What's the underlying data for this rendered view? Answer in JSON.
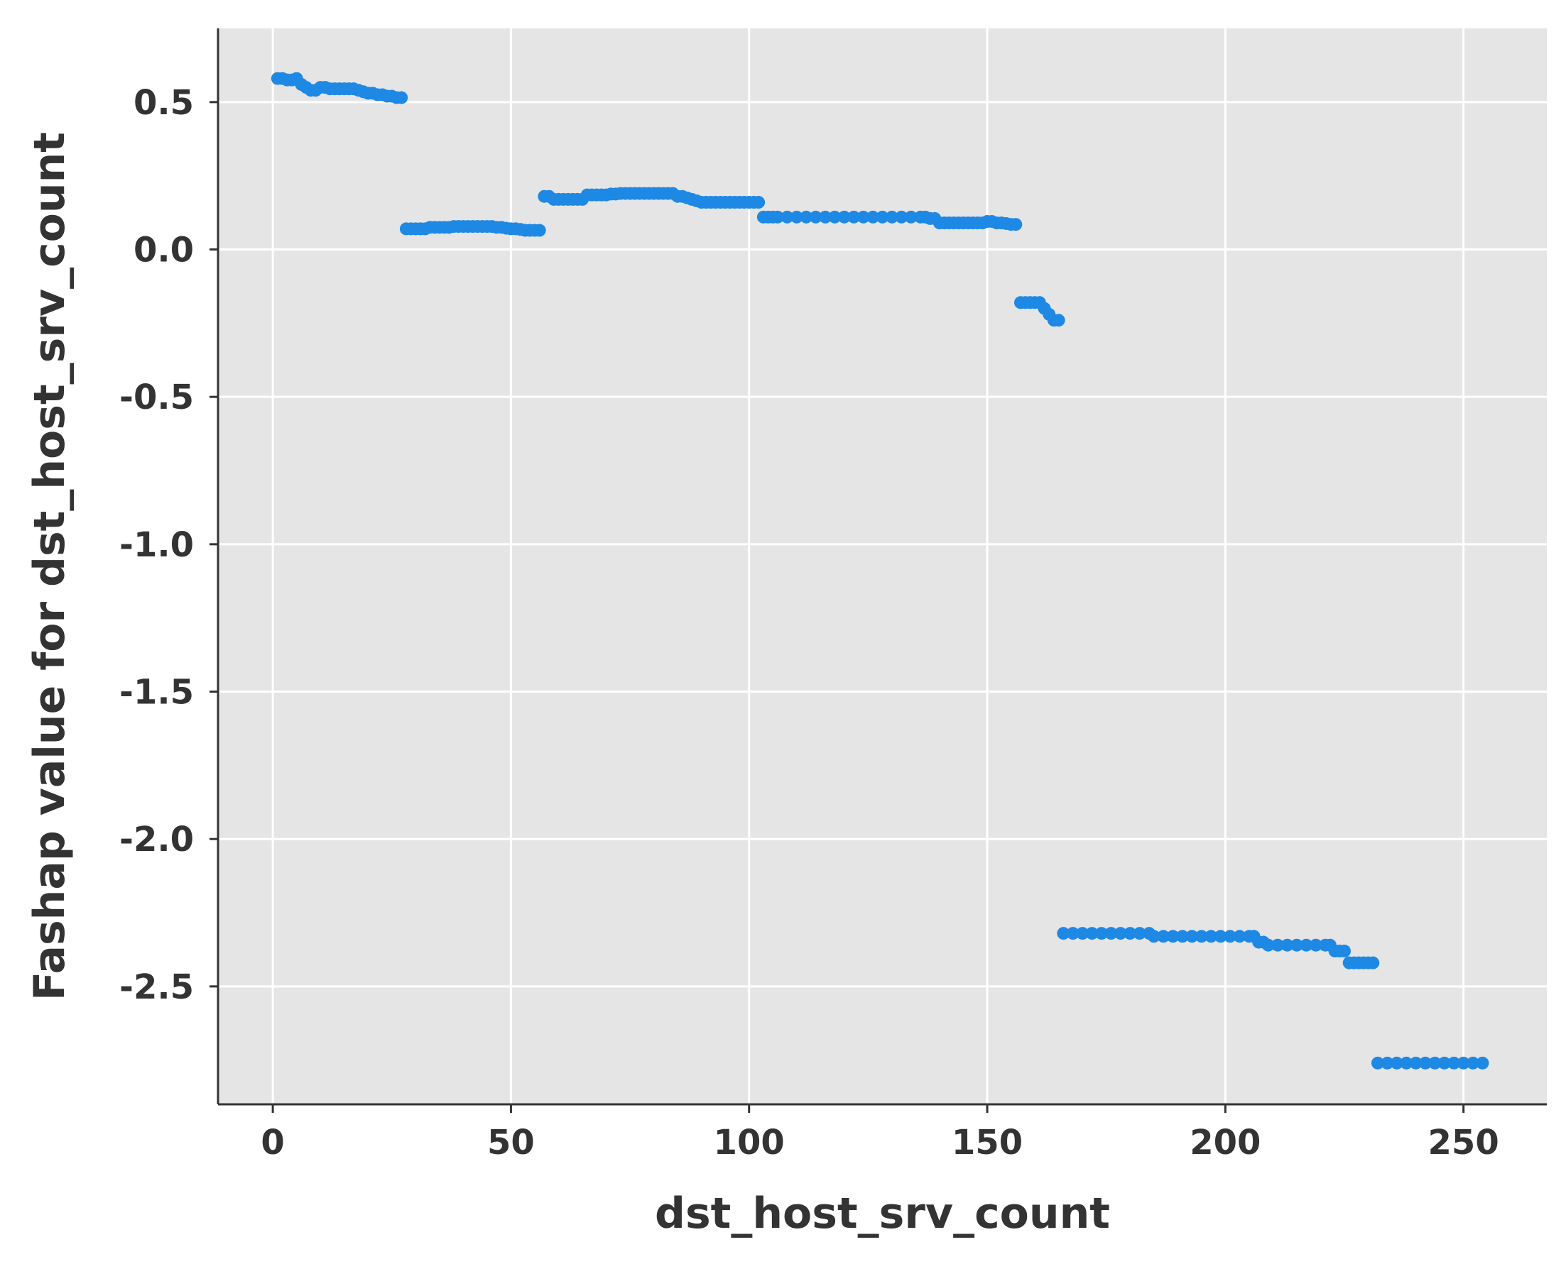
{
  "chart_data": {
    "type": "scatter",
    "title": "",
    "xlabel": "dst_host_srv_count",
    "ylabel": "Fashap value for dst_host_srv_count",
    "xlim": [
      -11.5,
      267.5
    ],
    "ylim": [
      -2.9,
      0.75
    ],
    "xticks": [
      0,
      50,
      100,
      150,
      200,
      250
    ],
    "xtick_labels": [
      "0",
      "50",
      "100",
      "150",
      "200",
      "250"
    ],
    "yticks": [
      0.5,
      0.0,
      -0.5,
      -1.0,
      -1.5,
      -2.0,
      -2.5
    ],
    "ytick_labels": [
      "0.5",
      "0.0",
      "-0.5",
      "-1.0",
      "-1.5",
      "-2.0",
      "-2.5"
    ],
    "grid": true,
    "marker_color": "#1e88e5",
    "background_color": "#e5e5e5",
    "points": [
      [
        1,
        0.58
      ],
      [
        2,
        0.58
      ],
      [
        3,
        0.575
      ],
      [
        4,
        0.575
      ],
      [
        5,
        0.58
      ],
      [
        6,
        0.56
      ],
      [
        7,
        0.55
      ],
      [
        8,
        0.54
      ],
      [
        9,
        0.54
      ],
      [
        10,
        0.55
      ],
      [
        11,
        0.55
      ],
      [
        12,
        0.545
      ],
      [
        13,
        0.545
      ],
      [
        14,
        0.545
      ],
      [
        15,
        0.545
      ],
      [
        16,
        0.545
      ],
      [
        17,
        0.545
      ],
      [
        18,
        0.54
      ],
      [
        19,
        0.535
      ],
      [
        20,
        0.53
      ],
      [
        21,
        0.53
      ],
      [
        22,
        0.525
      ],
      [
        23,
        0.525
      ],
      [
        24,
        0.52
      ],
      [
        25,
        0.52
      ],
      [
        26,
        0.515
      ],
      [
        27,
        0.515
      ],
      [
        28,
        0.07
      ],
      [
        29,
        0.07
      ],
      [
        30,
        0.07
      ],
      [
        31,
        0.07
      ],
      [
        32,
        0.07
      ],
      [
        33,
        0.075
      ],
      [
        34,
        0.075
      ],
      [
        35,
        0.075
      ],
      [
        36,
        0.075
      ],
      [
        37,
        0.075
      ],
      [
        38,
        0.078
      ],
      [
        39,
        0.078
      ],
      [
        40,
        0.078
      ],
      [
        41,
        0.078
      ],
      [
        42,
        0.078
      ],
      [
        43,
        0.078
      ],
      [
        44,
        0.078
      ],
      [
        45,
        0.078
      ],
      [
        46,
        0.078
      ],
      [
        47,
        0.075
      ],
      [
        48,
        0.075
      ],
      [
        49,
        0.072
      ],
      [
        50,
        0.07
      ],
      [
        51,
        0.07
      ],
      [
        52,
        0.068
      ],
      [
        53,
        0.065
      ],
      [
        54,
        0.065
      ],
      [
        55,
        0.065
      ],
      [
        56,
        0.065
      ],
      [
        57,
        0.18
      ],
      [
        58,
        0.18
      ],
      [
        59,
        0.17
      ],
      [
        60,
        0.17
      ],
      [
        61,
        0.17
      ],
      [
        62,
        0.17
      ],
      [
        63,
        0.17
      ],
      [
        64,
        0.17
      ],
      [
        65,
        0.17
      ],
      [
        66,
        0.185
      ],
      [
        67,
        0.185
      ],
      [
        68,
        0.185
      ],
      [
        69,
        0.185
      ],
      [
        70,
        0.185
      ],
      [
        71,
        0.188
      ],
      [
        72,
        0.188
      ],
      [
        73,
        0.19
      ],
      [
        74,
        0.19
      ],
      [
        75,
        0.19
      ],
      [
        76,
        0.19
      ],
      [
        77,
        0.19
      ],
      [
        78,
        0.19
      ],
      [
        79,
        0.19
      ],
      [
        80,
        0.19
      ],
      [
        81,
        0.19
      ],
      [
        82,
        0.19
      ],
      [
        83,
        0.19
      ],
      [
        84,
        0.19
      ],
      [
        85,
        0.18
      ],
      [
        86,
        0.18
      ],
      [
        87,
        0.175
      ],
      [
        88,
        0.17
      ],
      [
        89,
        0.165
      ],
      [
        90,
        0.16
      ],
      [
        91,
        0.16
      ],
      [
        92,
        0.16
      ],
      [
        93,
        0.16
      ],
      [
        94,
        0.16
      ],
      [
        95,
        0.16
      ],
      [
        96,
        0.16
      ],
      [
        97,
        0.16
      ],
      [
        98,
        0.16
      ],
      [
        99,
        0.16
      ],
      [
        100,
        0.16
      ],
      [
        101,
        0.16
      ],
      [
        102,
        0.16
      ],
      [
        103,
        0.11
      ],
      [
        104,
        0.11
      ],
      [
        105,
        0.11
      ],
      [
        106,
        0.11
      ],
      [
        108,
        0.11
      ],
      [
        110,
        0.11
      ],
      [
        112,
        0.11
      ],
      [
        114,
        0.11
      ],
      [
        116,
        0.11
      ],
      [
        118,
        0.11
      ],
      [
        120,
        0.11
      ],
      [
        122,
        0.11
      ],
      [
        124,
        0.11
      ],
      [
        126,
        0.11
      ],
      [
        128,
        0.11
      ],
      [
        130,
        0.11
      ],
      [
        132,
        0.11
      ],
      [
        134,
        0.11
      ],
      [
        136,
        0.11
      ],
      [
        137,
        0.11
      ],
      [
        138,
        0.105
      ],
      [
        139,
        0.105
      ],
      [
        140,
        0.09
      ],
      [
        141,
        0.09
      ],
      [
        142,
        0.09
      ],
      [
        143,
        0.09
      ],
      [
        144,
        0.09
      ],
      [
        145,
        0.09
      ],
      [
        146,
        0.09
      ],
      [
        147,
        0.09
      ],
      [
        148,
        0.09
      ],
      [
        149,
        0.09
      ],
      [
        150,
        0.095
      ],
      [
        151,
        0.095
      ],
      [
        152,
        0.09
      ],
      [
        153,
        0.09
      ],
      [
        154,
        0.088
      ],
      [
        155,
        0.085
      ],
      [
        156,
        0.085
      ],
      [
        157,
        -0.18
      ],
      [
        158,
        -0.18
      ],
      [
        159,
        -0.18
      ],
      [
        160,
        -0.18
      ],
      [
        161,
        -0.18
      ],
      [
        162,
        -0.2
      ],
      [
        163,
        -0.22
      ],
      [
        164,
        -0.24
      ],
      [
        165,
        -0.24
      ],
      [
        166,
        -2.32
      ],
      [
        168,
        -2.32
      ],
      [
        170,
        -2.32
      ],
      [
        172,
        -2.32
      ],
      [
        174,
        -2.32
      ],
      [
        176,
        -2.32
      ],
      [
        178,
        -2.32
      ],
      [
        180,
        -2.32
      ],
      [
        182,
        -2.32
      ],
      [
        184,
        -2.32
      ],
      [
        185,
        -2.33
      ],
      [
        187,
        -2.33
      ],
      [
        189,
        -2.33
      ],
      [
        191,
        -2.33
      ],
      [
        193,
        -2.33
      ],
      [
        195,
        -2.33
      ],
      [
        197,
        -2.33
      ],
      [
        199,
        -2.33
      ],
      [
        201,
        -2.33
      ],
      [
        203,
        -2.33
      ],
      [
        205,
        -2.33
      ],
      [
        206,
        -2.33
      ],
      [
        207,
        -2.35
      ],
      [
        208,
        -2.35
      ],
      [
        209,
        -2.36
      ],
      [
        211,
        -2.36
      ],
      [
        213,
        -2.36
      ],
      [
        215,
        -2.36
      ],
      [
        217,
        -2.36
      ],
      [
        219,
        -2.36
      ],
      [
        221,
        -2.36
      ],
      [
        222,
        -2.36
      ],
      [
        223,
        -2.38
      ],
      [
        224,
        -2.38
      ],
      [
        225,
        -2.38
      ],
      [
        226,
        -2.42
      ],
      [
        227,
        -2.42
      ],
      [
        228,
        -2.42
      ],
      [
        229,
        -2.42
      ],
      [
        230,
        -2.42
      ],
      [
        231,
        -2.42
      ],
      [
        232,
        -2.76
      ],
      [
        234,
        -2.76
      ],
      [
        236,
        -2.76
      ],
      [
        238,
        -2.76
      ],
      [
        240,
        -2.76
      ],
      [
        242,
        -2.76
      ],
      [
        244,
        -2.76
      ],
      [
        246,
        -2.76
      ],
      [
        248,
        -2.76
      ],
      [
        250,
        -2.76
      ],
      [
        252,
        -2.76
      ],
      [
        254,
        -2.76
      ]
    ]
  }
}
